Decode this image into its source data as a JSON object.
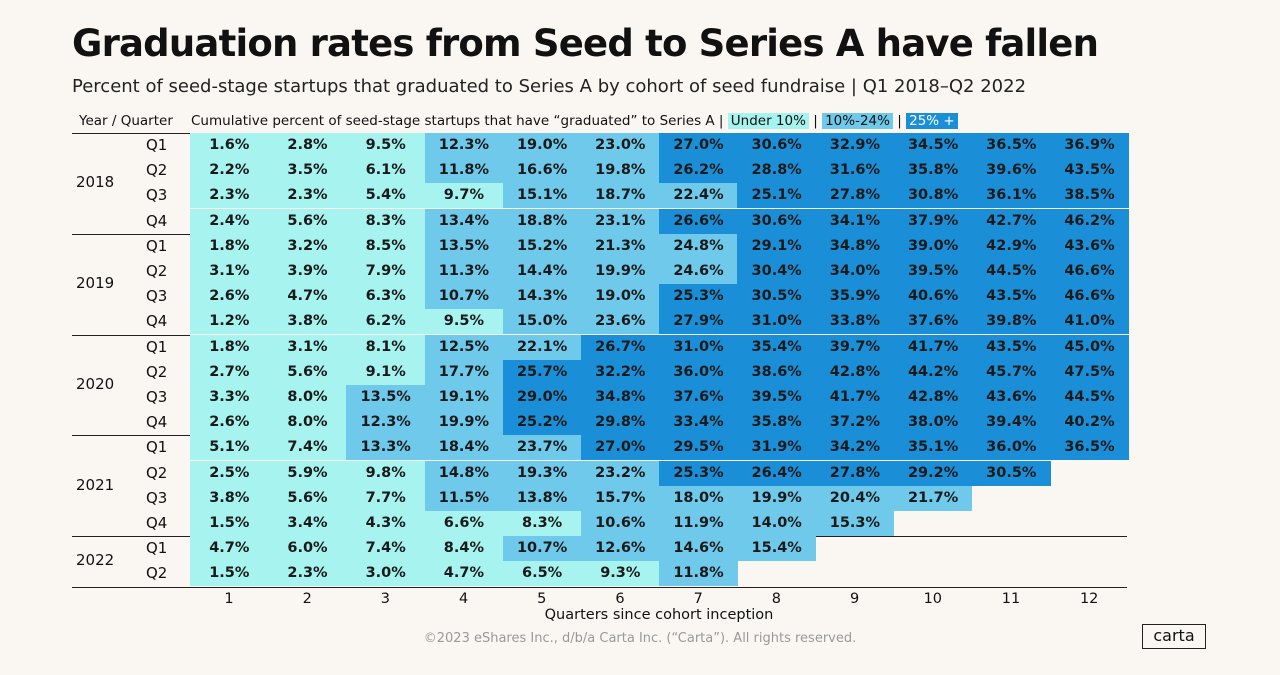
{
  "title": "Graduation rates from Seed to Series A have fallen",
  "subtitle": "Percent of seed-stage startups that graduated to Series A by cohort of seed fundraise | Q1 2018–Q2 2022",
  "header": {
    "left": "Year / Quarter",
    "right_prefix": "Cumulative percent of seed-stage startups that have “graduated” to Series A",
    "sep": " | ",
    "legend": [
      "Under 10%",
      "10%-24%",
      "25% +"
    ]
  },
  "colors": {
    "under10": "#a6f3ef",
    "mid": "#6fc9ea",
    "high": "#1a8fd8"
  },
  "footer": "©2023 eShares Inc., d/b/a Carta Inc. (“Carta”). All rights reserved.",
  "logo": "carta",
  "chart_data": {
    "type": "heatmap",
    "title": "Graduation rates from Seed to Series A have fallen",
    "xlabel": "Quarters since cohort inception",
    "ylabel": "Year / Quarter",
    "x": [
      1,
      2,
      3,
      4,
      5,
      6,
      7,
      8,
      9,
      10,
      11,
      12
    ],
    "thresholds": [
      10,
      25
    ],
    "groups": [
      {
        "year": "2018",
        "rows": [
          {
            "q": "Q1",
            "values": [
              "1.6%",
              "2.8%",
              "9.5%",
              "12.3%",
              "19.0%",
              "23.0%",
              "27.0%",
              "30.6%",
              "32.9%",
              "34.5%",
              "36.5%",
              "36.9%"
            ]
          },
          {
            "q": "Q2",
            "values": [
              "2.2%",
              "3.5%",
              "6.1%",
              "11.8%",
              "16.6%",
              "19.8%",
              "26.2%",
              "28.8%",
              "31.6%",
              "35.8%",
              "39.6%",
              "43.5%"
            ]
          },
          {
            "q": "Q3",
            "values": [
              "2.3%",
              "2.3%",
              "5.4%",
              "9.7%",
              "15.1%",
              "18.7%",
              "22.4%",
              "25.1%",
              "27.8%",
              "30.8%",
              "36.1%",
              "38.5%"
            ]
          },
          {
            "q": "Q4",
            "values": [
              "2.4%",
              "5.6%",
              "8.3%",
              "13.4%",
              "18.8%",
              "23.1%",
              "26.6%",
              "30.6%",
              "34.1%",
              "37.9%",
              "42.7%",
              "46.2%"
            ]
          }
        ]
      },
      {
        "year": "2019",
        "rows": [
          {
            "q": "Q1",
            "values": [
              "1.8%",
              "3.2%",
              "8.5%",
              "13.5%",
              "15.2%",
              "21.3%",
              "24.8%",
              "29.1%",
              "34.8%",
              "39.0%",
              "42.9%",
              "43.6%"
            ]
          },
          {
            "q": "Q2",
            "values": [
              "3.1%",
              "3.9%",
              "7.9%",
              "11.3%",
              "14.4%",
              "19.9%",
              "24.6%",
              "30.4%",
              "34.0%",
              "39.5%",
              "44.5%",
              "46.6%"
            ]
          },
          {
            "q": "Q3",
            "values": [
              "2.6%",
              "4.7%",
              "6.3%",
              "10.7%",
              "14.3%",
              "19.0%",
              "25.3%",
              "30.5%",
              "35.9%",
              "40.6%",
              "43.5%",
              "46.6%"
            ]
          },
          {
            "q": "Q4",
            "values": [
              "1.2%",
              "3.8%",
              "6.2%",
              "9.5%",
              "15.0%",
              "23.6%",
              "27.9%",
              "31.0%",
              "33.8%",
              "37.6%",
              "39.8%",
              "41.0%"
            ]
          }
        ]
      },
      {
        "year": "2020",
        "rows": [
          {
            "q": "Q1",
            "values": [
              "1.8%",
              "3.1%",
              "8.1%",
              "12.5%",
              "22.1%",
              "26.7%",
              "31.0%",
              "35.4%",
              "39.7%",
              "41.7%",
              "43.5%",
              "45.0%"
            ]
          },
          {
            "q": "Q2",
            "values": [
              "2.7%",
              "5.6%",
              "9.1%",
              "17.7%",
              "25.7%",
              "32.2%",
              "36.0%",
              "38.6%",
              "42.8%",
              "44.2%",
              "45.7%",
              "47.5%"
            ]
          },
          {
            "q": "Q3",
            "values": [
              "3.3%",
              "8.0%",
              "13.5%",
              "19.1%",
              "29.0%",
              "34.8%",
              "37.6%",
              "39.5%",
              "41.7%",
              "42.8%",
              "43.6%",
              "44.5%"
            ]
          },
          {
            "q": "Q4",
            "values": [
              "2.6%",
              "8.0%",
              "12.3%",
              "19.9%",
              "25.2%",
              "29.8%",
              "33.4%",
              "35.8%",
              "37.2%",
              "38.0%",
              "39.4%",
              "40.2%"
            ]
          }
        ]
      },
      {
        "year": "2021",
        "rows": [
          {
            "q": "Q1",
            "values": [
              "5.1%",
              "7.4%",
              "13.3%",
              "18.4%",
              "23.7%",
              "27.0%",
              "29.5%",
              "31.9%",
              "34.2%",
              "35.1%",
              "36.0%",
              "36.5%"
            ]
          },
          {
            "q": "Q2",
            "values": [
              "2.5%",
              "5.9%",
              "9.8%",
              "14.8%",
              "19.3%",
              "23.2%",
              "25.3%",
              "26.4%",
              "27.8%",
              "29.2%",
              "30.5%"
            ]
          },
          {
            "q": "Q3",
            "values": [
              "3.8%",
              "5.6%",
              "7.7%",
              "11.5%",
              "13.8%",
              "15.7%",
              "18.0%",
              "19.9%",
              "20.4%",
              "21.7%"
            ]
          },
          {
            "q": "Q4",
            "values": [
              "1.5%",
              "3.4%",
              "4.3%",
              "6.6%",
              "8.3%",
              "10.6%",
              "11.9%",
              "14.0%",
              "15.3%"
            ]
          }
        ]
      },
      {
        "year": "2022",
        "rows": [
          {
            "q": "Q1",
            "values": [
              "4.7%",
              "6.0%",
              "7.4%",
              "8.4%",
              "10.7%",
              "12.6%",
              "14.6%",
              "15.4%"
            ]
          },
          {
            "q": "Q2",
            "values": [
              "1.5%",
              "2.3%",
              "3.0%",
              "4.7%",
              "6.5%",
              "9.3%",
              "11.8%"
            ]
          }
        ]
      }
    ]
  }
}
